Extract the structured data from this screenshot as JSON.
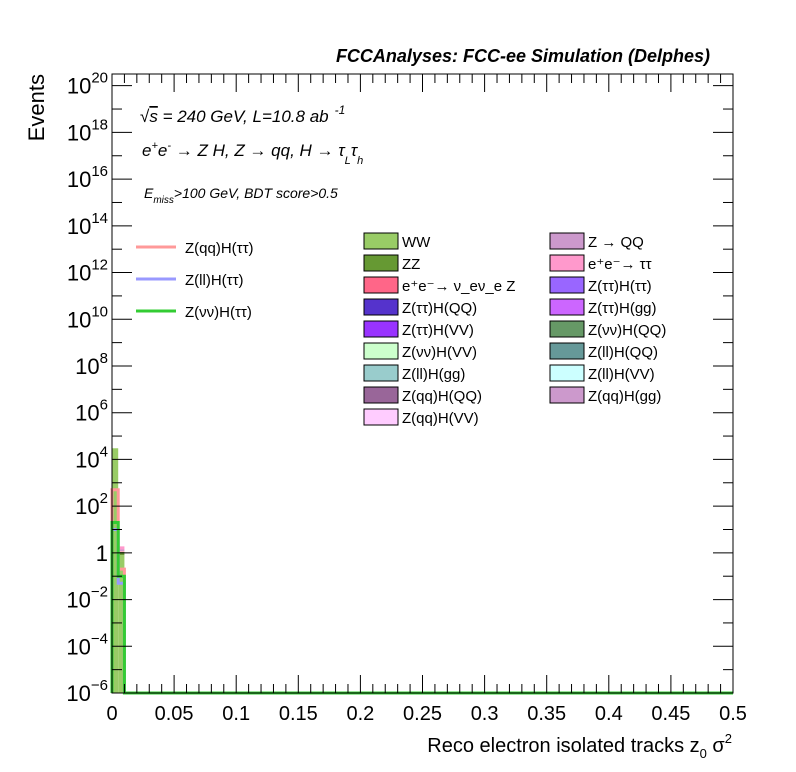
{
  "chart_data": {
    "type": "bar",
    "title": "FCCAnalyses: FCC-ee Simulation (Delphes)",
    "xlabel": "Reco electron isolated tracks z",
    "xlabel_sub": "0",
    "xlabel_suffix": " σ",
    "xlabel_sup": "2",
    "ylabel": "Events",
    "xlim": [
      0,
      0.5
    ],
    "ylim": [
      1e-06,
      3e+20
    ],
    "yscale": "log",
    "grid": false,
    "x_ticks": [
      "0",
      "0.05",
      "0.1",
      "0.15",
      "0.2",
      "0.25",
      "0.3",
      "0.35",
      "0.4",
      "0.45",
      "0.5"
    ],
    "x_tick_values": [
      0,
      0.05,
      0.1,
      0.15,
      0.2,
      0.25,
      0.3,
      0.35,
      0.4,
      0.45,
      0.5
    ],
    "y_ticks": [
      {
        "exp": -6,
        "base": "10",
        "sup": "−6"
      },
      {
        "exp": -4,
        "base": "10",
        "sup": "−4"
      },
      {
        "exp": -2,
        "base": "10",
        "sup": "−2"
      },
      {
        "exp": 0,
        "base": "1",
        "sup": ""
      },
      {
        "exp": 2,
        "base": "10",
        "sup": "2"
      },
      {
        "exp": 4,
        "base": "10",
        "sup": "4"
      },
      {
        "exp": 6,
        "base": "10",
        "sup": "6"
      },
      {
        "exp": 8,
        "base": "10",
        "sup": "8"
      },
      {
        "exp": 10,
        "base": "10",
        "sup": "10"
      },
      {
        "exp": 12,
        "base": "10",
        "sup": "12"
      },
      {
        "exp": 14,
        "base": "10",
        "sup": "14"
      },
      {
        "exp": 16,
        "base": "10",
        "sup": "16"
      },
      {
        "exp": 18,
        "base": "10",
        "sup": "18"
      },
      {
        "exp": 20,
        "base": "10",
        "sup": "20"
      }
    ],
    "annotations": {
      "line1_sqrt": "√",
      "line1_s": "s",
      "line1_rest": " = 240 GeV, L=10.8 ab",
      "line1_sup": "-1",
      "line2_a": "e",
      "line2_a_sup": "+",
      "line2_b": "e",
      "line2_b_sup": "-",
      "line2_rest": " → Z H, Z  → qq, H  → ",
      "line2_tau1": "τ",
      "line2_tau1_sub": "L",
      "line2_tau2": "τ",
      "line2_tau2_sub": "h",
      "line3_e": "E",
      "line3_sub": "miss",
      "line3_rest": ">100 GeV, BDT score>0.5"
    },
    "bin_width": 0.005,
    "stacked_series": [
      {
        "name": "WW",
        "color": "#99cc66",
        "values": [
          30000,
          0.8
        ]
      },
      {
        "name": "ZZ",
        "color": "#669933",
        "values": [
          500,
          0.3
        ]
      },
      {
        "name": "e⁺e⁻→ ν_eν_e Z",
        "color": "#ff6688",
        "values": [
          2,
          0.05
        ]
      },
      {
        "name": "Z(ττ)H(QQ)",
        "color": "#5533cc",
        "values": [
          1.5,
          0.02
        ]
      },
      {
        "name": "Z(ττ)H(VV)",
        "color": "#9933ff",
        "values": [
          0.5,
          0.01
        ]
      },
      {
        "name": "Z(νν)H(VV)",
        "color": "#ccffcc",
        "values": [
          0.3,
          0.005
        ]
      },
      {
        "name": "Z(ll)H(gg)",
        "color": "#99cccc",
        "values": [
          0.2,
          0.003
        ]
      },
      {
        "name": "Z(qq)H(QQ)",
        "color": "#996699",
        "values": [
          0.3,
          0.003
        ]
      },
      {
        "name": "Z(qq)H(VV)",
        "color": "#ffccff",
        "values": [
          0.2,
          0.002
        ]
      },
      {
        "name": "Z → QQ",
        "color": "#cc99cc",
        "values": [
          300,
          0.2
        ]
      },
      {
        "name": "e⁺e⁻→ ττ",
        "color": "#ff99cc",
        "values": [
          100,
          0.5
        ]
      },
      {
        "name": "Z(ττ)H(ττ)",
        "color": "#9966ff",
        "values": [
          0.5,
          0.01
        ]
      },
      {
        "name": "Z(ττ)H(gg)",
        "color": "#cc66ff",
        "values": [
          0.2,
          0.005
        ]
      },
      {
        "name": "Z(νν)H(QQ)",
        "color": "#669966",
        "values": [
          0.5,
          0.01
        ]
      },
      {
        "name": "Z(ll)H(QQ)",
        "color": "#669999",
        "values": [
          0.3,
          0.005
        ]
      },
      {
        "name": "Z(ll)H(VV)",
        "color": "#ccffff",
        "values": [
          0.1,
          0.002
        ]
      },
      {
        "name": "Z(qq)H(gg)",
        "color": "#cc99cc",
        "values": [
          0.2,
          0.003
        ]
      }
    ],
    "signal_series": [
      {
        "name": "Z(qq)H(ττ)",
        "color": "#ff9999",
        "values": [
          500,
          0.2
        ]
      },
      {
        "name": "Z(ll)H(ττ)",
        "color": "#9999ff",
        "values": [
          10,
          0.05
        ]
      },
      {
        "name": "Z(νν)H(ττ)",
        "color": "#33cc33",
        "values": [
          20,
          0.1
        ]
      }
    ]
  }
}
